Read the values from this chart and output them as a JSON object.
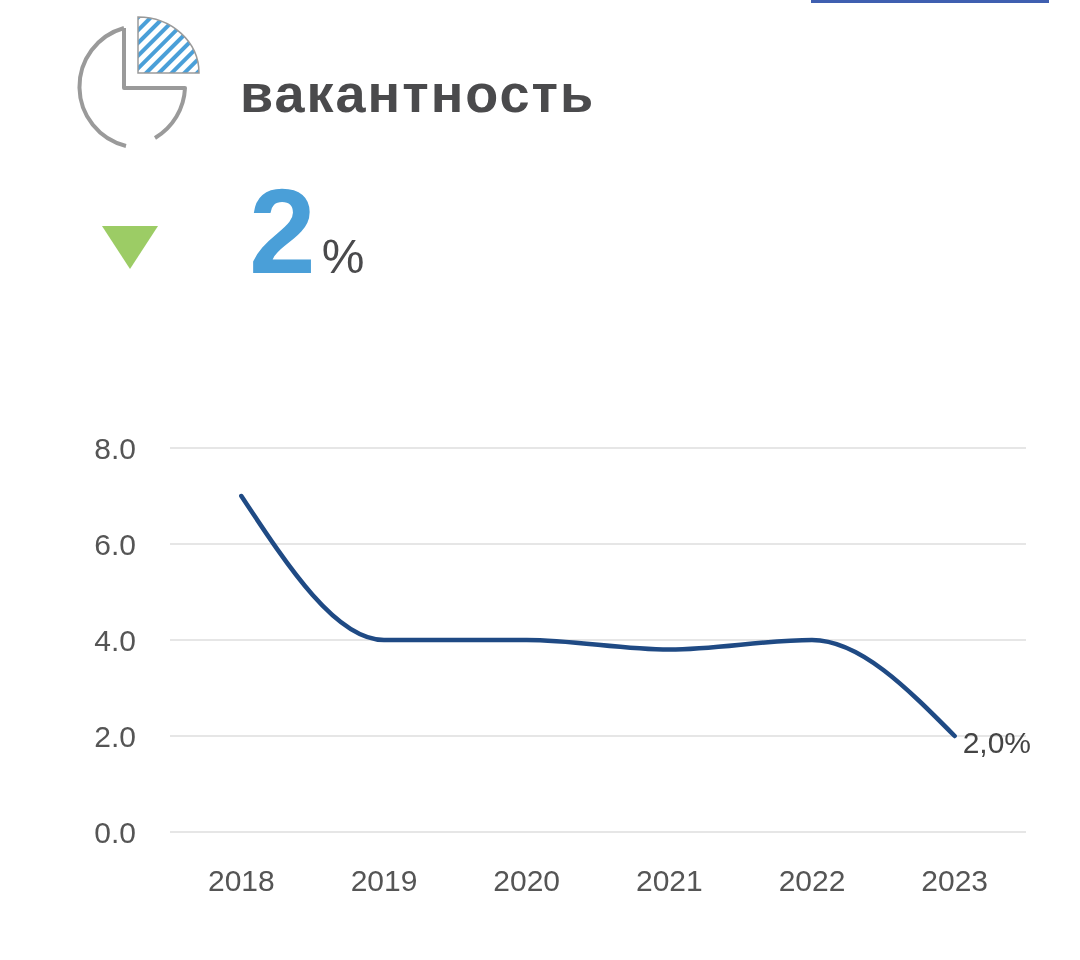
{
  "chart_data": {
    "type": "line",
    "title": "вакантность",
    "annotations": [
      "2%"
    ],
    "categories": [
      "2018",
      "2019",
      "2020",
      "2021",
      "2022",
      "2023"
    ],
    "values": [
      7.0,
      4.0,
      4.0,
      3.8,
      4.0,
      2.0
    ],
    "color": "#1f4a84",
    "value_labels": [
      null,
      null,
      null,
      null,
      null,
      "2,0%"
    ],
    "ylim": [
      0,
      8
    ],
    "yticks": [
      {
        "value": 0,
        "label": "0.0"
      },
      {
        "value": 2,
        "label": "2.0"
      },
      {
        "value": 4,
        "label": "4.0"
      },
      {
        "value": 6,
        "label": "6.0"
      },
      {
        "value": 8,
        "label": "8.0"
      }
    ],
    "grid": "y"
  }
}
